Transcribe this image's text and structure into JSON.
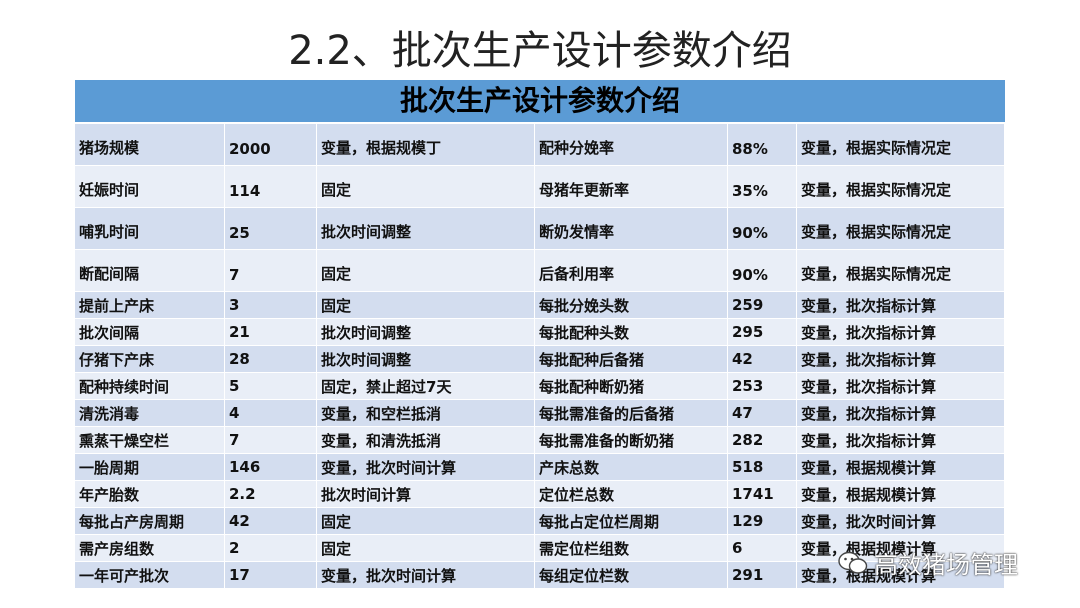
{
  "title": "2.2、批次生产设计参数介绍",
  "table": {
    "header": "批次生产设计参数介绍",
    "rows": [
      [
        "猪场规模",
        "2000",
        "变量，根据规模丁",
        "配种分娩率",
        "88%",
        "变量，根据实际情况定"
      ],
      [
        "妊娠时间",
        "114",
        "固定",
        "母猪年更新率",
        "35%",
        "变量，根据实际情况定"
      ],
      [
        "哺乳时间",
        "25",
        "批次时间调整",
        "断奶发情率",
        "90%",
        "变量，根据实际情况定"
      ],
      [
        "断配间隔",
        "7",
        "固定",
        "后备利用率",
        "90%",
        "变量，根据实际情况定"
      ],
      [
        "提前上产床",
        "3",
        "固定",
        "每批分娩头数",
        "259",
        "变量，批次指标计算"
      ],
      [
        "批次间隔",
        "21",
        "批次时间调整",
        "每批配种头数",
        "295",
        "变量，批次指标计算"
      ],
      [
        "仔猪下产床",
        "28",
        "批次时间调整",
        "每批配种后备猪",
        "42",
        "变量，批次指标计算"
      ],
      [
        "配种持续时间",
        "5",
        "固定，禁止超过7天",
        "每批配种断奶猪",
        "253",
        "变量，批次指标计算"
      ],
      [
        "清洗消毒",
        "4",
        "变量，和空栏抵消",
        "每批需准备的后备猪",
        "47",
        "变量，批次指标计算"
      ],
      [
        "熏蒸干燥空栏",
        "7",
        "变量，和清洗抵消",
        "每批需准备的断奶猪",
        "282",
        "变量，批次指标计算"
      ],
      [
        "一胎周期",
        "146",
        "变量，批次时间计算",
        "产床总数",
        "518",
        "变量，根据规模计算"
      ],
      [
        "年产胎数",
        "2.2",
        "批次时间计算",
        "定位栏总数",
        "1741",
        "变量，根据规模计算"
      ],
      [
        "每批占产房周期",
        "42",
        "固定",
        "每批占定位栏周期",
        "129",
        "变量，批次时间计算"
      ],
      [
        "需产房组数",
        "2",
        "固定",
        "需定位栏组数",
        "6",
        "变量，根据规模计算"
      ],
      [
        "一年可产批次",
        "17",
        "变量，批次时间计算",
        "每组定位栏数",
        "291",
        "变量，根据规模计算"
      ]
    ]
  },
  "watermark": "高效猪场管理"
}
